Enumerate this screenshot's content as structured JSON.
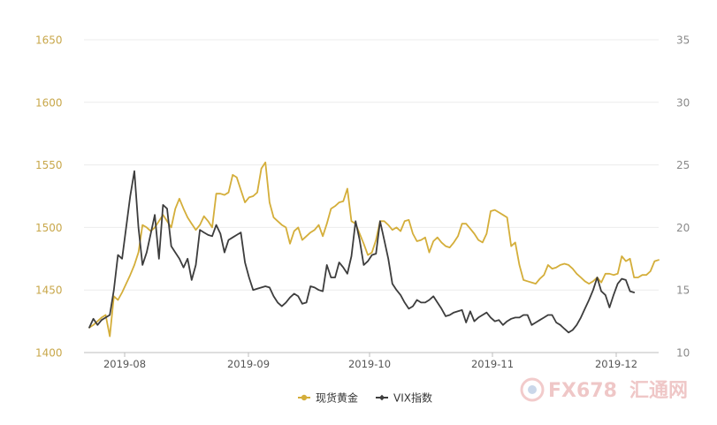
{
  "chart_data": {
    "type": "line",
    "x_labels": [
      "2019-08",
      "2019-09",
      "2019-10",
      "2019-11",
      "2019-12"
    ],
    "y_left": {
      "min": 1400,
      "max": 1650,
      "ticks": [
        "1400",
        "1450",
        "1500",
        "1550",
        "1600",
        "1650"
      ]
    },
    "y_right": {
      "min": 10,
      "max": 35,
      "ticks": [
        "10",
        "15",
        "20",
        "25",
        "30",
        "35"
      ]
    },
    "grid": true,
    "legend_position": "bottom-center",
    "series": [
      {
        "name": "现货黄金",
        "axis": "left",
        "color": "#d4ae3a",
        "values": [
          1420,
          1422,
          1425,
          1428,
          1430,
          1413,
          1445,
          1442,
          1448,
          1455,
          1462,
          1470,
          1480,
          1502,
          1500,
          1497,
          1500,
          1505,
          1510,
          1505,
          1500,
          1515,
          1523,
          1515,
          1508,
          1503,
          1498,
          1502,
          1509,
          1505,
          1500,
          1527,
          1527,
          1526,
          1528,
          1542,
          1540,
          1530,
          1520,
          1524,
          1525,
          1528,
          1547,
          1552,
          1520,
          1508,
          1505,
          1502,
          1500,
          1487,
          1497,
          1500,
          1490,
          1493,
          1496,
          1498,
          1502,
          1493,
          1503,
          1515,
          1517,
          1520,
          1521,
          1531,
          1505,
          1503,
          1495,
          1487,
          1478,
          1480,
          1490,
          1505,
          1505,
          1502,
          1498,
          1500,
          1497,
          1505,
          1506,
          1495,
          1489,
          1490,
          1492,
          1480,
          1489,
          1492,
          1488,
          1485,
          1484,
          1488,
          1493,
          1503,
          1503,
          1499,
          1495,
          1490,
          1488,
          1495,
          1513,
          1514,
          1512,
          1510,
          1508,
          1485,
          1488,
          1470,
          1458,
          1457,
          1456,
          1455,
          1459,
          1462,
          1470,
          1467,
          1468,
          1470,
          1471,
          1470,
          1467,
          1463,
          1460,
          1457,
          1455,
          1457,
          1460,
          1456,
          1463,
          1463,
          1462,
          1463,
          1477,
          1473,
          1475,
          1460,
          1460,
          1462,
          1462,
          1465,
          1473,
          1474
        ]
      },
      {
        "name": "VIX指数",
        "axis": "right",
        "color": "#3d3d3d",
        "values": [
          12.0,
          12.7,
          12.2,
          12.6,
          12.8,
          13.0,
          15.0,
          17.8,
          17.5,
          20.0,
          22.5,
          24.5,
          20.0,
          17.0,
          18.0,
          19.5,
          21.0,
          17.5,
          21.8,
          21.5,
          18.5,
          18.0,
          17.5,
          16.8,
          17.5,
          15.8,
          17.0,
          19.8,
          19.6,
          19.4,
          19.3,
          20.2,
          19.5,
          18.0,
          19.0,
          19.2,
          19.4,
          19.6,
          17.2,
          16.0,
          15.0,
          15.1,
          15.2,
          15.3,
          15.2,
          14.5,
          14.0,
          13.7,
          14.0,
          14.4,
          14.7,
          14.5,
          13.9,
          14.0,
          15.3,
          15.2,
          15.0,
          14.9,
          17.0,
          16.0,
          16.0,
          17.2,
          16.8,
          16.3,
          17.7,
          20.5,
          19.0,
          17.0,
          17.3,
          17.8,
          17.9,
          20.5,
          19.0,
          17.5,
          15.5,
          15.0,
          14.6,
          14.0,
          13.5,
          13.7,
          14.2,
          14.0,
          14.0,
          14.2,
          14.5,
          14.0,
          13.5,
          12.9,
          13.0,
          13.2,
          13.3,
          13.4,
          12.4,
          13.3,
          12.5,
          12.8,
          13.0,
          13.2,
          12.8,
          12.5,
          12.6,
          12.2,
          12.5,
          12.7,
          12.8,
          12.8,
          13.0,
          13.0,
          12.2,
          12.4,
          12.6,
          12.8,
          13.0,
          13.0,
          12.4,
          12.2,
          11.9,
          11.6,
          11.8,
          12.2,
          12.8,
          13.5,
          14.2,
          15.0,
          16.0,
          14.9,
          14.6,
          13.6,
          14.6,
          15.5,
          15.9,
          15.8,
          14.9,
          14.8
        ]
      }
    ]
  },
  "legend": {
    "gold_label": "现货黄金",
    "vix_label": "VIX指数"
  },
  "watermark": {
    "brand": "FX678",
    "sub": "汇通网"
  }
}
